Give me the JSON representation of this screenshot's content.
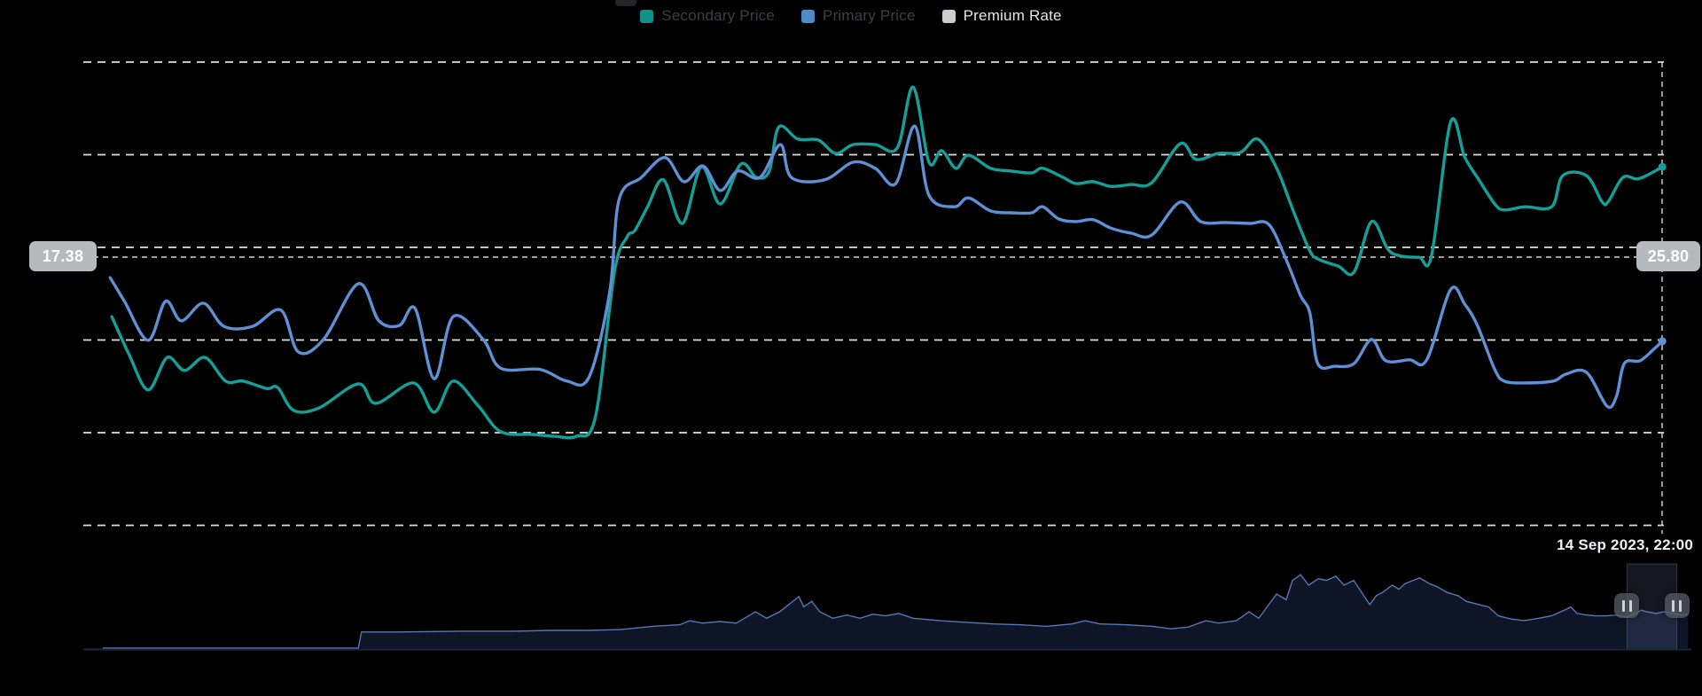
{
  "legend": {
    "items": [
      {
        "label": "Secondary Price",
        "marker_color": "#0f9289",
        "dimmed": true
      },
      {
        "label": "Primary Price",
        "marker_color": "#4d8bcd",
        "dimmed": true
      },
      {
        "label": "Premium Rate",
        "marker_color": "#c9ccd0",
        "dimmed": false
      }
    ]
  },
  "axis_pointer": {
    "left_value": "17.38",
    "right_value": "25.80",
    "date_label": "14 Sep 2023, 22:00"
  },
  "chart_data": {
    "type": "line",
    "title": "",
    "grid": {
      "horizontal_lines": 6,
      "style": "dashed",
      "grid_color": "#ececec",
      "crosshair_color": "#d6d6d6",
      "background": "#000000"
    },
    "x_axis": {
      "type": "time",
      "unit": "percent_of_visible_range",
      "crosshair_x_pct": 99.9,
      "crosshair_label": "14 Sep 2023, 22:00"
    },
    "y_axes": [
      {
        "side": "left",
        "crosshair_value": 17.38,
        "unit": "percent_of_plot_height"
      },
      {
        "side": "right",
        "crosshair_value": 25.8,
        "unit": "percent_of_plot_height"
      }
    ],
    "crosshair_y_pct": 58.0,
    "series": [
      {
        "name": "Secondary Price",
        "color": "#14a098",
        "end_dot": true,
        "points": [
          [
            1.8,
            45.1
          ],
          [
            2.9,
            36.9
          ],
          [
            4.1,
            29.3
          ],
          [
            5.3,
            36.3
          ],
          [
            6.4,
            33.5
          ],
          [
            7.7,
            36.3
          ],
          [
            9.0,
            31.2
          ],
          [
            10.1,
            31.2
          ],
          [
            11.6,
            29.6
          ],
          [
            12.3,
            29.8
          ],
          [
            13.3,
            24.9
          ],
          [
            14.9,
            25.4
          ],
          [
            17.4,
            30.6
          ],
          [
            18.5,
            26.4
          ],
          [
            20.9,
            30.8
          ],
          [
            22.2,
            24.5
          ],
          [
            23.4,
            31.2
          ],
          [
            25.0,
            25.8
          ],
          [
            26.4,
            20.3
          ],
          [
            28.4,
            19.7
          ],
          [
            29.8,
            19.3
          ],
          [
            31.2,
            19.3
          ],
          [
            32.4,
            23.5
          ],
          [
            33.6,
            54.7
          ],
          [
            34.4,
            62.3
          ],
          [
            34.9,
            63.7
          ],
          [
            35.7,
            68.8
          ],
          [
            36.7,
            74.6
          ],
          [
            37.9,
            65.2
          ],
          [
            39.1,
            77.4
          ],
          [
            40.3,
            69.4
          ],
          [
            41.6,
            78.0
          ],
          [
            42.6,
            75.1
          ],
          [
            43.4,
            76.5
          ],
          [
            44.0,
            86.0
          ],
          [
            45.2,
            83.4
          ],
          [
            46.5,
            83.2
          ],
          [
            47.6,
            80.3
          ],
          [
            48.7,
            82.2
          ],
          [
            50.1,
            82.2
          ],
          [
            51.5,
            81.5
          ],
          [
            52.5,
            94.6
          ],
          [
            53.5,
            78.4
          ],
          [
            54.3,
            80.9
          ],
          [
            55.2,
            77.1
          ],
          [
            56.0,
            79.9
          ],
          [
            57.4,
            77.1
          ],
          [
            58.7,
            76.5
          ],
          [
            60.0,
            76.1
          ],
          [
            60.7,
            77.1
          ],
          [
            62.0,
            75.1
          ],
          [
            62.8,
            73.8
          ],
          [
            63.9,
            74.2
          ],
          [
            65.0,
            73.2
          ],
          [
            66.3,
            73.6
          ],
          [
            67.6,
            74.0
          ],
          [
            69.4,
            82.4
          ],
          [
            70.4,
            79.0
          ],
          [
            71.8,
            80.3
          ],
          [
            73.2,
            80.5
          ],
          [
            74.3,
            83.4
          ],
          [
            75.5,
            77.1
          ],
          [
            76.6,
            67.5
          ],
          [
            77.6,
            59.3
          ],
          [
            78.2,
            57.4
          ],
          [
            79.4,
            56.0
          ],
          [
            80.4,
            54.7
          ],
          [
            81.5,
            65.6
          ],
          [
            82.5,
            59.8
          ],
          [
            83.2,
            58.3
          ],
          [
            84.5,
            57.9
          ],
          [
            85.3,
            58.3
          ],
          [
            86.5,
            87.0
          ],
          [
            87.4,
            79.5
          ],
          [
            88.2,
            75.1
          ],
          [
            89.3,
            69.4
          ],
          [
            89.9,
            68.1
          ],
          [
            91.2,
            68.8
          ],
          [
            92.9,
            68.8
          ],
          [
            93.6,
            75.5
          ],
          [
            95.1,
            75.5
          ],
          [
            96.1,
            69.8
          ],
          [
            96.5,
            70.0
          ],
          [
            97.4,
            75.1
          ],
          [
            98.3,
            74.8
          ],
          [
            99.0,
            75.7
          ],
          [
            99.9,
            77.4
          ]
        ]
      },
      {
        "name": "Primary Price",
        "color": "#5e90d3",
        "end_dot": true,
        "points": [
          [
            1.7,
            53.5
          ],
          [
            2.6,
            48.4
          ],
          [
            4.1,
            40.0
          ],
          [
            5.2,
            48.4
          ],
          [
            6.2,
            44.2
          ],
          [
            7.6,
            48.0
          ],
          [
            8.9,
            43.0
          ],
          [
            10.7,
            43.0
          ],
          [
            12.5,
            46.5
          ],
          [
            13.6,
            37.5
          ],
          [
            15.2,
            40.2
          ],
          [
            17.4,
            52.2
          ],
          [
            18.7,
            44.2
          ],
          [
            20.0,
            43.2
          ],
          [
            21.0,
            46.8
          ],
          [
            22.2,
            31.7
          ],
          [
            23.4,
            45.1
          ],
          [
            25.3,
            40.2
          ],
          [
            26.4,
            34.0
          ],
          [
            28.9,
            33.7
          ],
          [
            30.6,
            31.2
          ],
          [
            32.0,
            32.1
          ],
          [
            33.3,
            50.3
          ],
          [
            33.9,
            70.4
          ],
          [
            35.3,
            75.1
          ],
          [
            36.8,
            79.4
          ],
          [
            38.0,
            74.2
          ],
          [
            39.2,
            77.6
          ],
          [
            40.3,
            72.3
          ],
          [
            41.4,
            76.5
          ],
          [
            42.8,
            75.1
          ],
          [
            44.1,
            82.2
          ],
          [
            44.8,
            75.1
          ],
          [
            46.9,
            74.6
          ],
          [
            48.7,
            78.4
          ],
          [
            50.1,
            77.1
          ],
          [
            51.4,
            73.8
          ],
          [
            52.6,
            86.2
          ],
          [
            53.5,
            71.3
          ],
          [
            55.1,
            68.8
          ],
          [
            56.0,
            70.7
          ],
          [
            57.4,
            67.9
          ],
          [
            58.7,
            67.5
          ],
          [
            60.0,
            67.5
          ],
          [
            60.7,
            68.8
          ],
          [
            61.7,
            66.2
          ],
          [
            62.8,
            65.6
          ],
          [
            63.9,
            66.0
          ],
          [
            65.0,
            64.2
          ],
          [
            66.3,
            63.1
          ],
          [
            67.6,
            62.7
          ],
          [
            69.4,
            69.8
          ],
          [
            70.7,
            65.6
          ],
          [
            72.3,
            65.4
          ],
          [
            73.8,
            65.2
          ],
          [
            75.0,
            65.0
          ],
          [
            76.1,
            57.4
          ],
          [
            77.0,
            49.7
          ],
          [
            77.6,
            45.9
          ],
          [
            78.1,
            35.0
          ],
          [
            79.2,
            34.4
          ],
          [
            80.4,
            35.0
          ],
          [
            81.5,
            40.2
          ],
          [
            82.4,
            35.6
          ],
          [
            83.9,
            35.8
          ],
          [
            85.0,
            35.8
          ],
          [
            86.5,
            50.9
          ],
          [
            87.4,
            47.8
          ],
          [
            88.2,
            43.2
          ],
          [
            89.3,
            33.7
          ],
          [
            89.9,
            31.2
          ],
          [
            91.2,
            30.8
          ],
          [
            93.0,
            31.2
          ],
          [
            93.8,
            32.7
          ],
          [
            95.1,
            33.1
          ],
          [
            96.4,
            25.8
          ],
          [
            97.0,
            27.9
          ],
          [
            97.5,
            35.0
          ],
          [
            98.5,
            35.6
          ],
          [
            99.4,
            38.2
          ],
          [
            99.9,
            39.8
          ]
        ]
      }
    ],
    "navigator": {
      "line_color": "#5b76b2",
      "fill_color": "#0d1526",
      "axis_color": "#1c2742",
      "window": {
        "start_pct": 96.0,
        "end_pct": 99.1,
        "fill": "rgba(130,150,200,0.16)",
        "stroke": "rgba(150,170,215,0.28)"
      },
      "points": [
        [
          1.2,
          0
        ],
        [
          17.1,
          0
        ],
        [
          17.3,
          20
        ],
        [
          19.6,
          20
        ],
        [
          23.5,
          21
        ],
        [
          26.8,
          21
        ],
        [
          29.0,
          22
        ],
        [
          31.4,
          22
        ],
        [
          33.4,
          23
        ],
        [
          35.4,
          27
        ],
        [
          37.1,
          29
        ],
        [
          37.7,
          34
        ],
        [
          38.5,
          31
        ],
        [
          39.6,
          33
        ],
        [
          40.6,
          31
        ],
        [
          41.8,
          45
        ],
        [
          42.5,
          37
        ],
        [
          43.3,
          45
        ],
        [
          44.5,
          64
        ],
        [
          44.8,
          51
        ],
        [
          45.3,
          58
        ],
        [
          45.8,
          45
        ],
        [
          46.6,
          37
        ],
        [
          47.5,
          41
        ],
        [
          48.3,
          37
        ],
        [
          49.1,
          42
        ],
        [
          49.9,
          40
        ],
        [
          50.7,
          43
        ],
        [
          51.6,
          37
        ],
        [
          53.3,
          34
        ],
        [
          54.9,
          32
        ],
        [
          56.6,
          30
        ],
        [
          58.2,
          29
        ],
        [
          59.9,
          27
        ],
        [
          61.5,
          30
        ],
        [
          62.3,
          34
        ],
        [
          63.2,
          30
        ],
        [
          64.8,
          29
        ],
        [
          66.5,
          27
        ],
        [
          67.6,
          24
        ],
        [
          68.7,
          26
        ],
        [
          69.8,
          34
        ],
        [
          70.6,
          31
        ],
        [
          71.7,
          34
        ],
        [
          72.5,
          45
        ],
        [
          73.1,
          37
        ],
        [
          73.8,
          56
        ],
        [
          74.2,
          67
        ],
        [
          74.8,
          60
        ],
        [
          75.2,
          84
        ],
        [
          75.7,
          91
        ],
        [
          76.2,
          78
        ],
        [
          76.8,
          86
        ],
        [
          77.3,
          84
        ],
        [
          77.9,
          89
        ],
        [
          78.4,
          78
        ],
        [
          79.0,
          84
        ],
        [
          79.5,
          69
        ],
        [
          80.0,
          54
        ],
        [
          80.4,
          65
        ],
        [
          80.8,
          69
        ],
        [
          81.4,
          78
        ],
        [
          81.8,
          73
        ],
        [
          82.2,
          80
        ],
        [
          82.7,
          84
        ],
        [
          83.1,
          87
        ],
        [
          83.7,
          80
        ],
        [
          84.2,
          76
        ],
        [
          84.8,
          69
        ],
        [
          85.5,
          65
        ],
        [
          86.0,
          58
        ],
        [
          86.8,
          54
        ],
        [
          87.4,
          51
        ],
        [
          88.0,
          40
        ],
        [
          88.8,
          36
        ],
        [
          89.6,
          34
        ],
        [
          90.5,
          37
        ],
        [
          91.3,
          40
        ],
        [
          92.1,
          47
        ],
        [
          92.5,
          51
        ],
        [
          92.9,
          43
        ],
        [
          93.5,
          41
        ],
        [
          94.0,
          40
        ],
        [
          94.7,
          40
        ],
        [
          95.4,
          41
        ],
        [
          96.0,
          38
        ],
        [
          96.5,
          43
        ],
        [
          96.9,
          47
        ],
        [
          97.2,
          45
        ],
        [
          97.8,
          43
        ],
        [
          98.3,
          45
        ],
        [
          98.9,
          43
        ],
        [
          99.4,
          41
        ],
        [
          99.8,
          42
        ]
      ]
    }
  }
}
